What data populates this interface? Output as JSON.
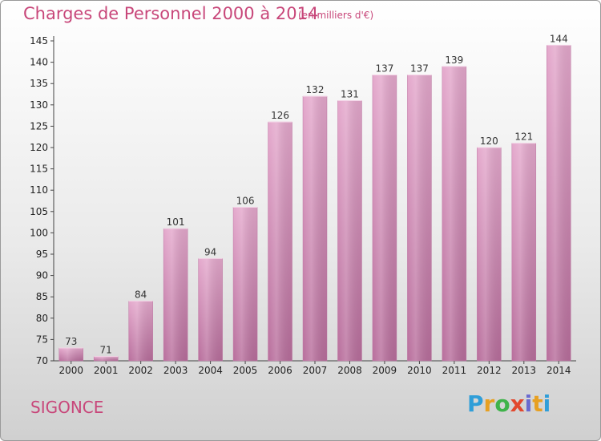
{
  "chart_data": {
    "type": "bar",
    "title": "Charges de Personnel 2000 à 2014",
    "subtitle": "(en milliers d'€)",
    "categories": [
      "2000",
      "2001",
      "2002",
      "2003",
      "2004",
      "2005",
      "2006",
      "2007",
      "2008",
      "2009",
      "2010",
      "2011",
      "2012",
      "2013",
      "2014"
    ],
    "values": [
      73,
      71,
      84,
      101,
      94,
      106,
      126,
      132,
      131,
      137,
      137,
      139,
      120,
      121,
      144
    ],
    "ylim": [
      70,
      145
    ],
    "yticks": [
      70,
      75,
      80,
      85,
      90,
      95,
      100,
      105,
      110,
      115,
      120,
      125,
      130,
      135,
      140,
      145
    ],
    "bar_color": "#d98ab8",
    "grid": false,
    "xlabel": "",
    "ylabel": ""
  },
  "commune": "SIGONCE",
  "logo": {
    "text": "Proxiti"
  },
  "colors": {
    "accent": "#c8477a"
  }
}
